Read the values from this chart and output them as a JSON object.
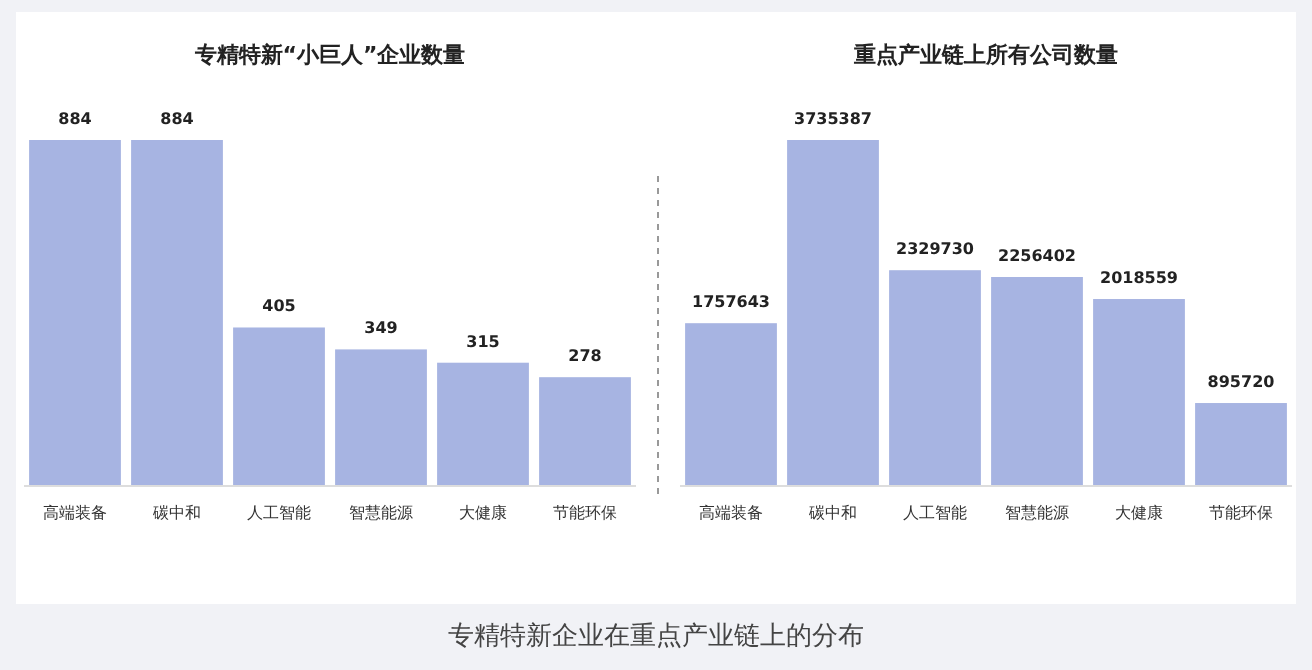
{
  "chart_data": [
    {
      "type": "bar",
      "title": "专精特新“小巨人”企业数量",
      "categories": [
        "高端装备",
        "碳中和",
        "人工智能",
        "智慧能源",
        "大健康",
        "节能环保"
      ],
      "values": [
        884,
        884,
        405,
        349,
        315,
        278
      ],
      "color": "#a7b4e2",
      "data_labels": true,
      "annotations": [
        "专精特新企业在重点产业链上的分布"
      ]
    },
    {
      "type": "bar",
      "title": "重点产业链上所有公司数量",
      "categories": [
        "高端装备",
        "碳中和",
        "人工智能",
        "智慧能源",
        "大健康",
        "节能环保"
      ],
      "values": [
        1757643,
        3735387,
        2329730,
        2256402,
        2018559,
        895720
      ],
      "color": "#a7b4e2",
      "data_labels": true
    }
  ]
}
